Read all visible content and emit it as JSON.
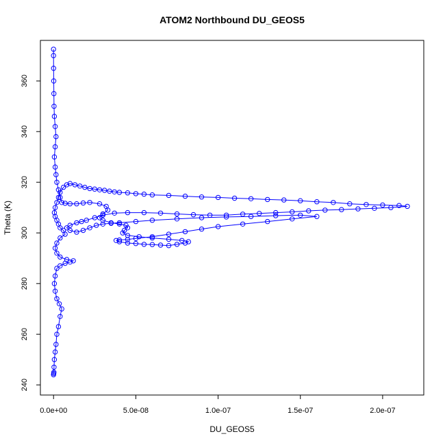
{
  "chart_data": {
    "type": "scatter",
    "title": "ATOM2 Northbound DU_GEOS5",
    "xlabel": "DU_GEOS5",
    "ylabel": "Theta (K)",
    "xlim": [
      -8e-09,
      2.25e-07
    ],
    "ylim": [
      236,
      376
    ],
    "xticks": [
      0,
      5e-08,
      1e-07,
      1.5e-07,
      2e-07
    ],
    "xtick_labels": [
      "0.0e+00",
      "5.0e-08",
      "1.0e-07",
      "1.5e-07",
      "2.0e-07"
    ],
    "yticks": [
      240,
      260,
      280,
      300,
      320,
      340,
      360
    ],
    "ytick_labels": [
      "240",
      "260",
      "280",
      "300",
      "320",
      "340",
      "360"
    ],
    "grid": false,
    "series": [
      {
        "color": "#0000ff",
        "marker": "open-circle",
        "connected": true,
        "points": [
          [
            0.0,
            244.0
          ],
          [
            1e-10,
            244.5
          ],
          [
            2e-10,
            245.0
          ],
          [
            3e-10,
            247.0
          ],
          [
            5e-10,
            250.0
          ],
          [
            1e-09,
            253.0
          ],
          [
            1.5e-09,
            256.0
          ],
          [
            2e-09,
            260.0
          ],
          [
            3e-09,
            263.0
          ],
          [
            4e-09,
            267.0
          ],
          [
            5e-09,
            270.0
          ],
          [
            3.5e-09,
            272.0
          ],
          [
            2e-09,
            274.0
          ],
          [
            1e-09,
            277.0
          ],
          [
            5e-10,
            280.0
          ],
          [
            1e-09,
            283.0
          ],
          [
            2e-09,
            286.0
          ],
          [
            4e-09,
            287.0
          ],
          [
            7e-09,
            288.0
          ],
          [
            1e-08,
            288.5
          ],
          [
            1.2e-08,
            289.0
          ],
          [
            8e-09,
            289.5
          ],
          [
            4e-09,
            290.5
          ],
          [
            2e-09,
            292.0
          ],
          [
            1e-09,
            294.0
          ],
          [
            2e-09,
            296.0
          ],
          [
            4e-09,
            298.0
          ],
          [
            7e-09,
            299.5
          ],
          [
            6e-09,
            301.0
          ],
          [
            4e-09,
            302.0
          ],
          [
            3e-09,
            303.5
          ],
          [
            2e-09,
            305.0
          ],
          [
            1e-09,
            306.5
          ],
          [
            5e-10,
            308.0
          ],
          [
            1e-09,
            310.0
          ],
          [
            2e-09,
            312.0
          ],
          [
            3e-09,
            314.0
          ],
          [
            4e-09,
            316.0
          ],
          [
            6e-09,
            318.0
          ],
          [
            8e-09,
            319.0
          ],
          [
            1e-08,
            319.5
          ],
          [
            1.3e-08,
            319.0
          ],
          [
            1.6e-08,
            318.5
          ],
          [
            1.9e-08,
            318.0
          ],
          [
            2.2e-08,
            317.5
          ],
          [
            2.5e-08,
            317.3
          ],
          [
            2.8e-08,
            317.0
          ],
          [
            3.1e-08,
            316.8
          ],
          [
            3.4e-08,
            316.5
          ],
          [
            3.7e-08,
            316.2
          ],
          [
            4e-08,
            316.0
          ],
          [
            4.5e-08,
            315.8
          ],
          [
            5e-08,
            315.5
          ],
          [
            5.5e-08,
            315.3
          ],
          [
            6e-08,
            315.0
          ],
          [
            7e-08,
            314.8
          ],
          [
            8e-08,
            314.5
          ],
          [
            9e-08,
            314.2
          ],
          [
            1e-07,
            314.0
          ],
          [
            1.1e-07,
            313.7
          ],
          [
            1.2e-07,
            313.5
          ],
          [
            1.3e-07,
            313.2
          ],
          [
            1.4e-07,
            313.0
          ],
          [
            1.5e-07,
            312.7
          ],
          [
            1.6e-07,
            312.3
          ],
          [
            1.7e-07,
            312.0
          ],
          [
            1.8e-07,
            311.5
          ],
          [
            1.9e-07,
            311.2
          ],
          [
            2e-07,
            311.0
          ],
          [
            2.1e-07,
            310.8
          ],
          [
            2.15e-07,
            310.5
          ],
          [
            2.05e-07,
            310.0
          ],
          [
            1.95e-07,
            309.7
          ],
          [
            1.85e-07,
            309.5
          ],
          [
            1.75e-07,
            309.2
          ],
          [
            1.65e-07,
            309.0
          ],
          [
            1.55e-07,
            308.7
          ],
          [
            1.45e-07,
            308.3
          ],
          [
            1.35e-07,
            308.0
          ],
          [
            1.25e-07,
            307.7
          ],
          [
            1.15e-07,
            307.4
          ],
          [
            1.05e-07,
            307.0
          ],
          [
            9.5e-08,
            307.0
          ],
          [
            8.5e-08,
            307.2
          ],
          [
            7.5e-08,
            307.5
          ],
          [
            6.5e-08,
            307.8
          ],
          [
            5.5e-08,
            308.0
          ],
          [
            4.5e-08,
            308.0
          ],
          [
            3.7e-08,
            307.8
          ],
          [
            3e-08,
            307.0
          ],
          [
            2.5e-08,
            306.0
          ],
          [
            2e-08,
            305.0
          ],
          [
            1.7e-08,
            304.5
          ],
          [
            1.4e-08,
            304.0
          ],
          [
            1e-08,
            303.0
          ],
          [
            8e-09,
            302.0
          ],
          [
            1e-08,
            301.0
          ],
          [
            1.4e-08,
            300.3
          ],
          [
            1.8e-08,
            301.0
          ],
          [
            2.2e-08,
            302.0
          ],
          [
            2.6e-08,
            303.0
          ],
          [
            3e-08,
            303.5
          ],
          [
            3.5e-08,
            303.8
          ],
          [
            4e-08,
            304.0
          ],
          [
            5e-08,
            304.5
          ],
          [
            6e-08,
            305.0
          ],
          [
            7.5e-08,
            305.5
          ],
          [
            9e-08,
            306.0
          ],
          [
            1.05e-07,
            306.3
          ],
          [
            1.2e-07,
            306.5
          ],
          [
            1.35e-07,
            306.8
          ],
          [
            1.5e-07,
            307.0
          ],
          [
            1.6e-07,
            306.5
          ],
          [
            1.45e-07,
            305.5
          ],
          [
            1.3e-07,
            304.5
          ],
          [
            1.15e-07,
            303.5
          ],
          [
            1e-07,
            302.5
          ],
          [
            9e-08,
            301.5
          ],
          [
            8e-08,
            300.5
          ],
          [
            7e-08,
            299.5
          ],
          [
            6e-08,
            298.5
          ],
          [
            5e-08,
            297.8
          ],
          [
            4.5e-08,
            297.4
          ],
          [
            4e-08,
            297.2
          ],
          [
            3.8e-08,
            297.0
          ],
          [
            4e-08,
            296.5
          ],
          [
            4.5e-08,
            296.0
          ],
          [
            5e-08,
            295.8
          ],
          [
            5.5e-08,
            295.5
          ],
          [
            6e-08,
            295.4
          ],
          [
            6.5e-08,
            295.2
          ],
          [
            7e-08,
            295.0
          ],
          [
            7.5e-08,
            295.5
          ],
          [
            8e-08,
            296.0
          ],
          [
            8.2e-08,
            296.5
          ],
          [
            7.8e-08,
            297.0
          ],
          [
            7e-08,
            297.5
          ],
          [
            6e-08,
            298.0
          ],
          [
            5.2e-08,
            298.5
          ],
          [
            4.5e-08,
            299.0
          ],
          [
            4.2e-08,
            300.0
          ],
          [
            4.3e-08,
            301.0
          ],
          [
            4.5e-08,
            302.0
          ],
          [
            4.4e-08,
            303.0
          ],
          [
            4e-08,
            303.5
          ],
          [
            3.5e-08,
            304.0
          ],
          [
            3e-08,
            305.0
          ],
          [
            2.8e-08,
            306.0
          ],
          [
            3e-08,
            307.5
          ],
          [
            3.3e-08,
            309.0
          ],
          [
            3.2e-08,
            310.5
          ],
          [
            2.8e-08,
            311.5
          ],
          [
            2.2e-08,
            312.0
          ],
          [
            1.8e-08,
            311.8
          ],
          [
            1.4e-08,
            311.5
          ],
          [
            1e-08,
            311.5
          ],
          [
            7e-09,
            311.7
          ],
          [
            5e-09,
            312.0
          ],
          [
            4e-09,
            314.0
          ],
          [
            3e-09,
            317.0
          ],
          [
            2e-09,
            320.0
          ],
          [
            1.5e-09,
            323.0
          ],
          [
            1e-09,
            326.0
          ],
          [
            5e-10,
            330.0
          ],
          [
            1e-09,
            334.0
          ],
          [
            1.5e-09,
            338.0
          ],
          [
            1e-09,
            342.0
          ],
          [
            5e-10,
            346.0
          ],
          [
            3e-10,
            350.0
          ],
          [
            2e-10,
            355.0
          ],
          [
            1e-10,
            360.0
          ],
          [
            5e-11,
            365.0
          ],
          [
            0.0,
            370.0
          ],
          [
            0.0,
            372.5
          ]
        ]
      }
    ]
  }
}
